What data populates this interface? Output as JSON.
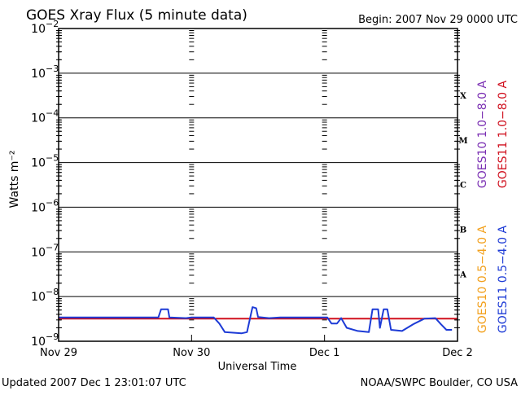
{
  "header": {
    "title": "GOES Xray Flux (5 minute data)",
    "begin": "Begin:  2007 Nov 29 0000 UTC"
  },
  "footer": {
    "updated": "Updated 2007 Dec  1 23:01:07 UTC",
    "credit": "NOAA/SWPC Boulder, CO USA"
  },
  "colors": {
    "goes10_long": "#7a2fb3",
    "goes11_long": "#d0101e",
    "goes10_short": "#f2a01c",
    "goes11_short": "#1d3bd6",
    "frame": "#000000"
  },
  "chart_data": {
    "type": "line",
    "title": "GOES Xray Flux (5 minute data)",
    "xlabel": "Universal Time",
    "ylabel": "Watts m⁻²",
    "yscale": "log",
    "ylim": [
      1e-09,
      0.01
    ],
    "xlim": [
      "2007-11-29 00:00",
      "2007-12-02 00:00"
    ],
    "x_ticks": [
      "Nov 29",
      "Nov 30",
      "Dec 1",
      "Dec 2"
    ],
    "y_ticks": [
      {
        "base": "10",
        "exp": "−2",
        "value": 0.01
      },
      {
        "base": "10",
        "exp": "−3",
        "value": 0.001
      },
      {
        "base": "10",
        "exp": "−4",
        "value": 0.0001
      },
      {
        "base": "10",
        "exp": "−5",
        "value": 1e-05
      },
      {
        "base": "10",
        "exp": "−6",
        "value": 1e-06
      },
      {
        "base": "10",
        "exp": "−7",
        "value": 1e-07
      },
      {
        "base": "10",
        "exp": "−8",
        "value": 1e-08
      },
      {
        "base": "10",
        "exp": "−9",
        "value": 1e-09
      }
    ],
    "flare_classes": [
      {
        "label": "X",
        "value": 0.00032
      },
      {
        "label": "M",
        "value": 3.2e-05
      },
      {
        "label": "C",
        "value": 3.2e-06
      },
      {
        "label": "B",
        "value": 3.2e-07
      },
      {
        "label": "A",
        "value": 3.2e-08
      }
    ],
    "grid": true,
    "legend_position": "right",
    "series": [
      {
        "name": "GOES11 1.0−8.0 A",
        "color_key": "goes11_long",
        "points": [
          {
            "x": "2007-11-29 00:00",
            "y": 3.2e-09
          },
          {
            "x": "2007-12-02 00:00",
            "y": 3.2e-09
          }
        ]
      },
      {
        "name": "GOES11 0.5−4.0 A",
        "color_key": "goes11_short",
        "points": [
          {
            "x": "2007-11-29 00:00",
            "y": 3.4e-09
          },
          {
            "x": "2007-11-29 18:00",
            "y": 3.4e-09
          },
          {
            "x": "2007-11-29 18:30",
            "y": 5.2e-09
          },
          {
            "x": "2007-11-29 19:45",
            "y": 5.2e-09
          },
          {
            "x": "2007-11-29 20:00",
            "y": 3.4e-09
          },
          {
            "x": "2007-11-29 23:00",
            "y": 3.3e-09
          },
          {
            "x": "2007-11-30 00:00",
            "y": 3.4e-09
          },
          {
            "x": "2007-11-30 04:00",
            "y": 3.4e-09
          },
          {
            "x": "2007-11-30 05:00",
            "y": 2.5e-09
          },
          {
            "x": "2007-11-30 06:00",
            "y": 1.6e-09
          },
          {
            "x": "2007-11-30 09:00",
            "y": 1.5e-09
          },
          {
            "x": "2007-11-30 10:00",
            "y": 1.6e-09
          },
          {
            "x": "2007-11-30 11:00",
            "y": 5.8e-09
          },
          {
            "x": "2007-11-30 11:40",
            "y": 5.5e-09
          },
          {
            "x": "2007-11-30 12:00",
            "y": 3.5e-09
          },
          {
            "x": "2007-11-30 14:00",
            "y": 3.3e-09
          },
          {
            "x": "2007-11-30 16:00",
            "y": 3.4e-09
          },
          {
            "x": "2007-12-01 00:30",
            "y": 3.4e-09
          },
          {
            "x": "2007-12-01 01:15",
            "y": 2.5e-09
          },
          {
            "x": "2007-12-01 02:15",
            "y": 2.5e-09
          },
          {
            "x": "2007-12-01 03:00",
            "y": 3.3e-09
          },
          {
            "x": "2007-12-01 04:00",
            "y": 2e-09
          },
          {
            "x": "2007-12-01 06:00",
            "y": 1.7e-09
          },
          {
            "x": "2007-12-01 08:00",
            "y": 1.6e-09
          },
          {
            "x": "2007-12-01 08:40",
            "y": 5.2e-09
          },
          {
            "x": "2007-12-01 09:40",
            "y": 5.2e-09
          },
          {
            "x": "2007-12-01 10:00",
            "y": 2e-09
          },
          {
            "x": "2007-12-01 10:40",
            "y": 5.2e-09
          },
          {
            "x": "2007-12-01 11:20",
            "y": 5.2e-09
          },
          {
            "x": "2007-12-01 12:00",
            "y": 1.8e-09
          },
          {
            "x": "2007-12-01 14:00",
            "y": 1.7e-09
          },
          {
            "x": "2007-12-01 16:00",
            "y": 2.4e-09
          },
          {
            "x": "2007-12-01 18:00",
            "y": 3.2e-09
          },
          {
            "x": "2007-12-01 20:00",
            "y": 3.3e-09
          },
          {
            "x": "2007-12-01 21:00",
            "y": 2.4e-09
          },
          {
            "x": "2007-12-01 22:00",
            "y": 1.8e-09
          },
          {
            "x": "2007-12-01 23:00",
            "y": 1.8e-09
          }
        ]
      }
    ],
    "legend": [
      {
        "text": "GOES10 1.0−8.0 A",
        "color_key": "goes10_long"
      },
      {
        "text": "GOES11 1.0−8.0 A",
        "color_key": "goes11_long"
      },
      {
        "text": "GOES10 0.5−4.0 A",
        "color_key": "goes10_short"
      },
      {
        "text": "GOES11 0.5−4.0 A",
        "color_key": "goes11_short"
      }
    ]
  }
}
